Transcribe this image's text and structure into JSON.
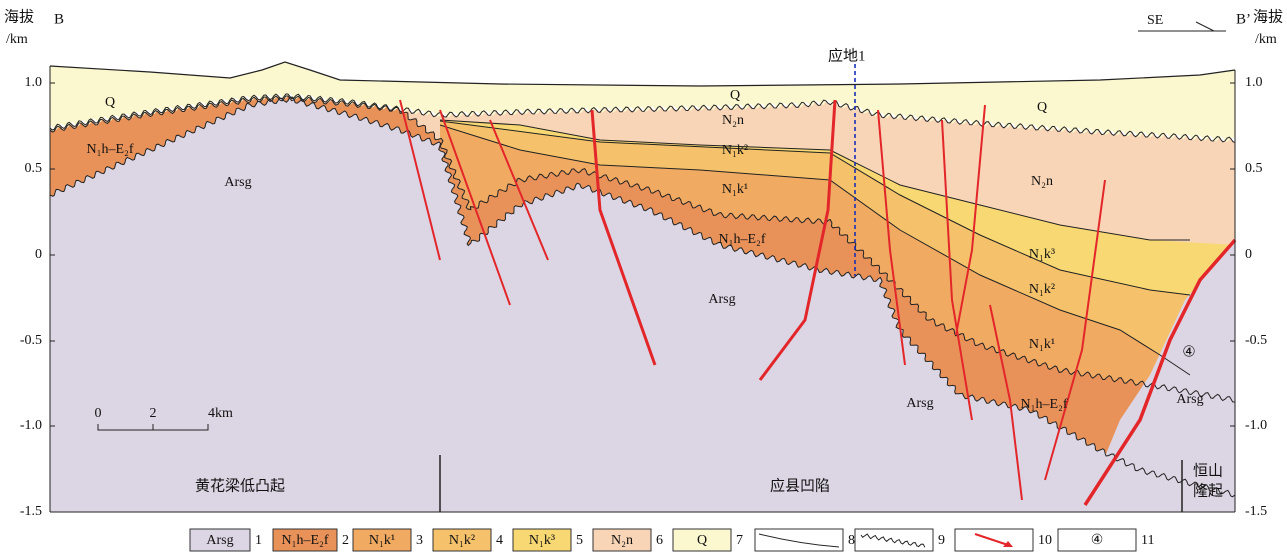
{
  "axis": {
    "title_left": "海拔",
    "unit_left": "/km",
    "title_right": "海拔",
    "unit_right": "/km",
    "ticks": [
      "1.0",
      "0.5",
      "0",
      "-0.5",
      "-1.0",
      "-1.5"
    ]
  },
  "section": {
    "start_label": "B",
    "end_label": "B’",
    "direction": "SE",
    "well": "应地1",
    "fault_number": "④"
  },
  "unit_labels": [
    "Q",
    "Q",
    "Q",
    "N₁h–E₂f",
    "Arsg",
    "N₂n",
    "N₁k²",
    "N₁k¹",
    "N₁h–E₂f",
    "Arsg",
    "N₂n",
    "N₁k³",
    "N₁k²",
    "N₁k¹",
    "Arsg",
    "N₁h–E₂f",
    "Arsg"
  ],
  "scale_bar": {
    "ticks": [
      "0",
      "2",
      "4km"
    ]
  },
  "regions": [
    {
      "lines": [
        "黄花梁低凸起"
      ]
    },
    {
      "lines": [
        "应县凹陷"
      ]
    },
    {
      "lines": [
        "恒山",
        "隆起"
      ]
    }
  ],
  "legend": [
    {
      "label": "Arsg",
      "number": "1"
    },
    {
      "label": "N₁h–E₂f",
      "number": "2"
    },
    {
      "label": "N₁k¹",
      "number": "3"
    },
    {
      "label": "N₁k²",
      "number": "4"
    },
    {
      "label": "N₁k³",
      "number": "5"
    },
    {
      "label": "N₂n",
      "number": "6"
    },
    {
      "label": "Q",
      "number": "7"
    },
    {
      "number": "8"
    },
    {
      "number": "9"
    },
    {
      "number": "10"
    },
    {
      "label": "④",
      "number": "11"
    }
  ]
}
